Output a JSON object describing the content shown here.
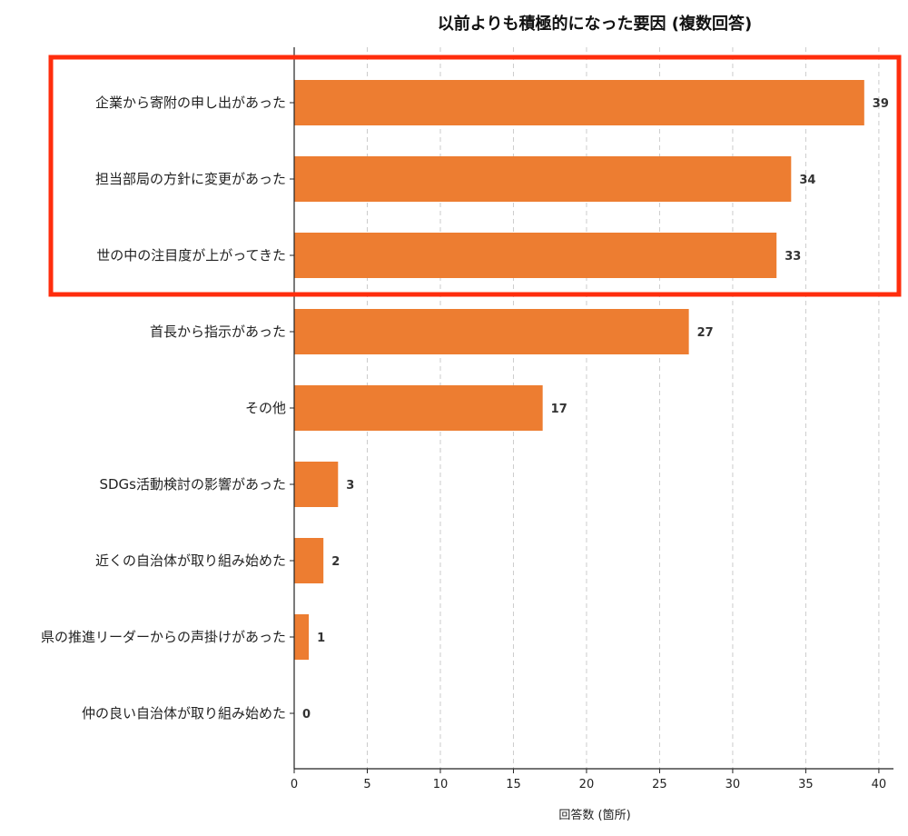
{
  "chart_data": {
    "type": "bar",
    "orientation": "horizontal",
    "title": "以前よりも積極的になった要因 (複数回答)",
    "xlabel": "回答数 (箇所)",
    "ylabel": "",
    "xlim": [
      0,
      41
    ],
    "xticks": [
      0,
      5,
      10,
      15,
      20,
      25,
      30,
      35,
      40
    ],
    "grid": "vertical dashed",
    "bar_color": "#ED7D31",
    "highlight_color": "#FF2D0D",
    "highlighted_categories": [
      "企業から寄附の申し出があった",
      "担当部局の方針に変更があった",
      "世の中の注目度が上がってきた"
    ],
    "categories": [
      "企業から寄附の申し出があった",
      "担当部局の方針に変更があった",
      "世の中の注目度が上がってきた",
      "首長から指示があった",
      "その他",
      "SDGs活動検討の影響があった",
      "近くの自治体が取り組み始めた",
      "県の推進リーダーからの声掛けがあった",
      "仲の良い自治体が取り組み始めた"
    ],
    "values": [
      39,
      34,
      33,
      27,
      17,
      3,
      2,
      1,
      0
    ]
  }
}
